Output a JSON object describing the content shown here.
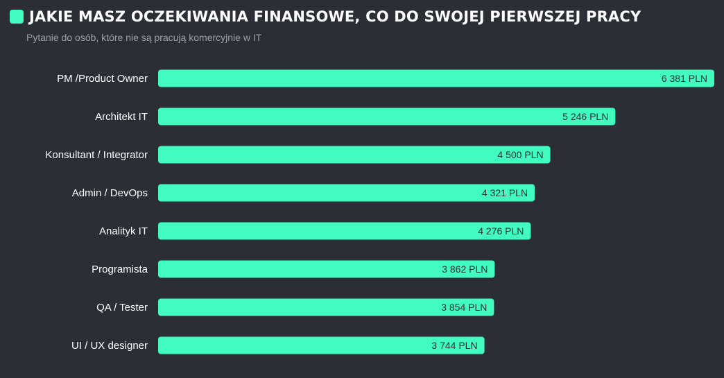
{
  "title": "JAKIE MASZ OCZEKIWANIA FINANSOWE, CO DO SWOJEJ PIERWSZEJ PRACY",
  "subtitle": "Pytanie do osób, które nie są pracują komercyjnie w IT",
  "colors": {
    "background": "#2b2e34",
    "bar": "#42fbbf",
    "label": "#ffffff",
    "value_text": "#2b2e34",
    "subtitle": "#9aa0a8"
  },
  "chart_data": {
    "type": "bar",
    "orientation": "horizontal",
    "categories": [
      "PM /Product Owner",
      "Architekt IT",
      "Konsultant / Integrator",
      "Admin / DevOps",
      "Analityk IT",
      "Programista",
      "QA / Tester",
      "UI / UX designer"
    ],
    "values": [
      6381,
      5246,
      4500,
      4321,
      4276,
      3862,
      3854,
      3744
    ],
    "value_labels": [
      "6 381 PLN",
      "5 246 PLN",
      "4 500 PLN",
      "4 321 PLN",
      "4 276 PLN",
      "3 862 PLN",
      "3 854 PLN",
      "3 744 PLN"
    ],
    "xlim": [
      0,
      6381
    ],
    "grid": false,
    "legend": "none"
  }
}
